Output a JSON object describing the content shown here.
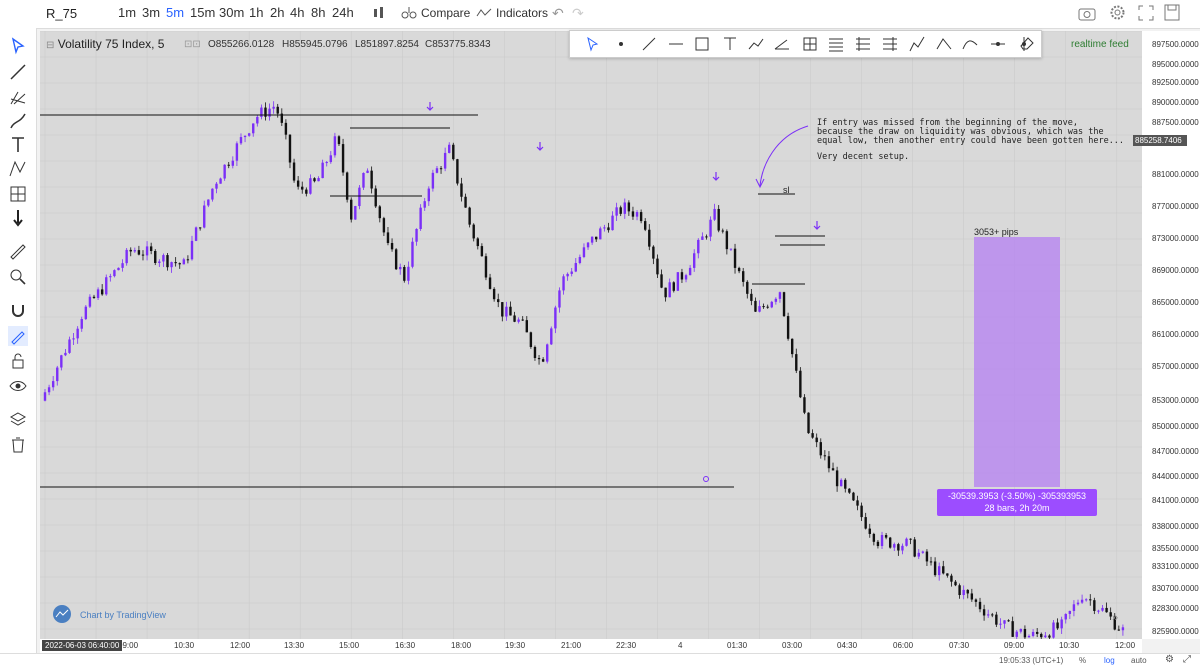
{
  "header": {
    "symbol": "R_75",
    "timeframes": [
      "1m",
      "3m",
      "5m",
      "15m",
      "30m",
      "1h",
      "2h",
      "4h",
      "8h",
      "24h"
    ],
    "active_timeframe": "5m",
    "compare_label": "Compare",
    "indicators_label": "Indicators"
  },
  "legend": {
    "title": "Volatility 75 Index, 5",
    "open": "O855266.0128",
    "high": "H855945.0796",
    "low": "L851897.8254",
    "close": "C853775.8343"
  },
  "realtime_label": "realtime feed",
  "price_axis": {
    "labels": [
      "897500.0000",
      "895000.0000",
      "892500.0000",
      "890000.0000",
      "887500.0000",
      "881000.0000",
      "877000.0000",
      "873000.0000",
      "869000.0000",
      "865000.0000",
      "861000.0000",
      "857000.0000",
      "853000.0000",
      "850000.0000",
      "847000.0000",
      "844000.0000",
      "841000.0000",
      "838000.0000",
      "835500.0000",
      "833100.0000",
      "830700.0000",
      "828300.0000",
      "825900.0000"
    ],
    "last_price": "885258.7406"
  },
  "time_axis": {
    "start_label": "2022-06-03 06:40:00",
    "labels": [
      "09:00",
      "10:30",
      "12:00",
      "13:30",
      "15:00",
      "16:30",
      "18:00",
      "19:30",
      "21:00",
      "22:30",
      "4",
      "01:30",
      "03:00",
      "04:30",
      "06:00",
      "07:30",
      "09:00",
      "10:30",
      "12:00"
    ]
  },
  "annotations": {
    "note_lines": [
      "If entry was missed from the beginning of the move,",
      "because the draw on liquidity was obvious, which was the",
      "equal low, then another entry could have been gotten here..."
    ],
    "note_extra": "Very decent setup.",
    "sl_label": "sl",
    "pips_label": "3053+ pips",
    "measure_line1": "-30539.3953 (-3.50%) -305393953",
    "measure_line2": "28 bars, 2h 20m"
  },
  "footer": {
    "clock": "19:05:33 (UTC+1)",
    "percent": "%",
    "log": "log",
    "auto": "auto",
    "watermark": "Chart by TradingView"
  },
  "colors": {
    "bull": "#7b2ff7",
    "bear": "#111111",
    "accent": "#2962ff",
    "range": "#b889ee"
  },
  "chart_data": {
    "type": "candlestick",
    "y_range": [
      824500,
      898500
    ],
    "x_range_bars": [
      0,
      300
    ],
    "note": "Approximate close path for Volatility 75 Index 5m",
    "keypoints": [
      [
        0,
        853500
      ],
      [
        20,
        864000
      ],
      [
        45,
        872000
      ],
      [
        70,
        870000
      ],
      [
        85,
        880000
      ],
      [
        95,
        884000
      ],
      [
        105,
        888000
      ],
      [
        115,
        889500
      ],
      [
        120,
        885000
      ],
      [
        125,
        879000
      ],
      [
        135,
        880000
      ],
      [
        145,
        885500
      ],
      [
        152,
        876000
      ],
      [
        160,
        882000
      ],
      [
        170,
        872000
      ],
      [
        178,
        868500
      ],
      [
        190,
        880000
      ],
      [
        200,
        884000
      ],
      [
        210,
        875000
      ],
      [
        225,
        864500
      ],
      [
        235,
        863000
      ],
      [
        245,
        858000
      ],
      [
        255,
        868000
      ],
      [
        270,
        873000
      ],
      [
        285,
        877000
      ],
      [
        295,
        876000
      ],
      [
        305,
        866500
      ],
      [
        315,
        869000
      ],
      [
        330,
        876000
      ],
      [
        340,
        870000
      ],
      [
        350,
        864000
      ],
      [
        362,
        867000
      ],
      [
        375,
        850000
      ],
      [
        392,
        843000
      ],
      [
        410,
        836500
      ],
      [
        425,
        836000
      ],
      [
        438,
        833000
      ],
      [
        450,
        830500
      ],
      [
        460,
        828500
      ],
      [
        472,
        826000
      ],
      [
        485,
        824800
      ],
      [
        500,
        826000
      ],
      [
        510,
        830000
      ],
      [
        520,
        828000
      ],
      [
        530,
        825500
      ]
    ]
  }
}
